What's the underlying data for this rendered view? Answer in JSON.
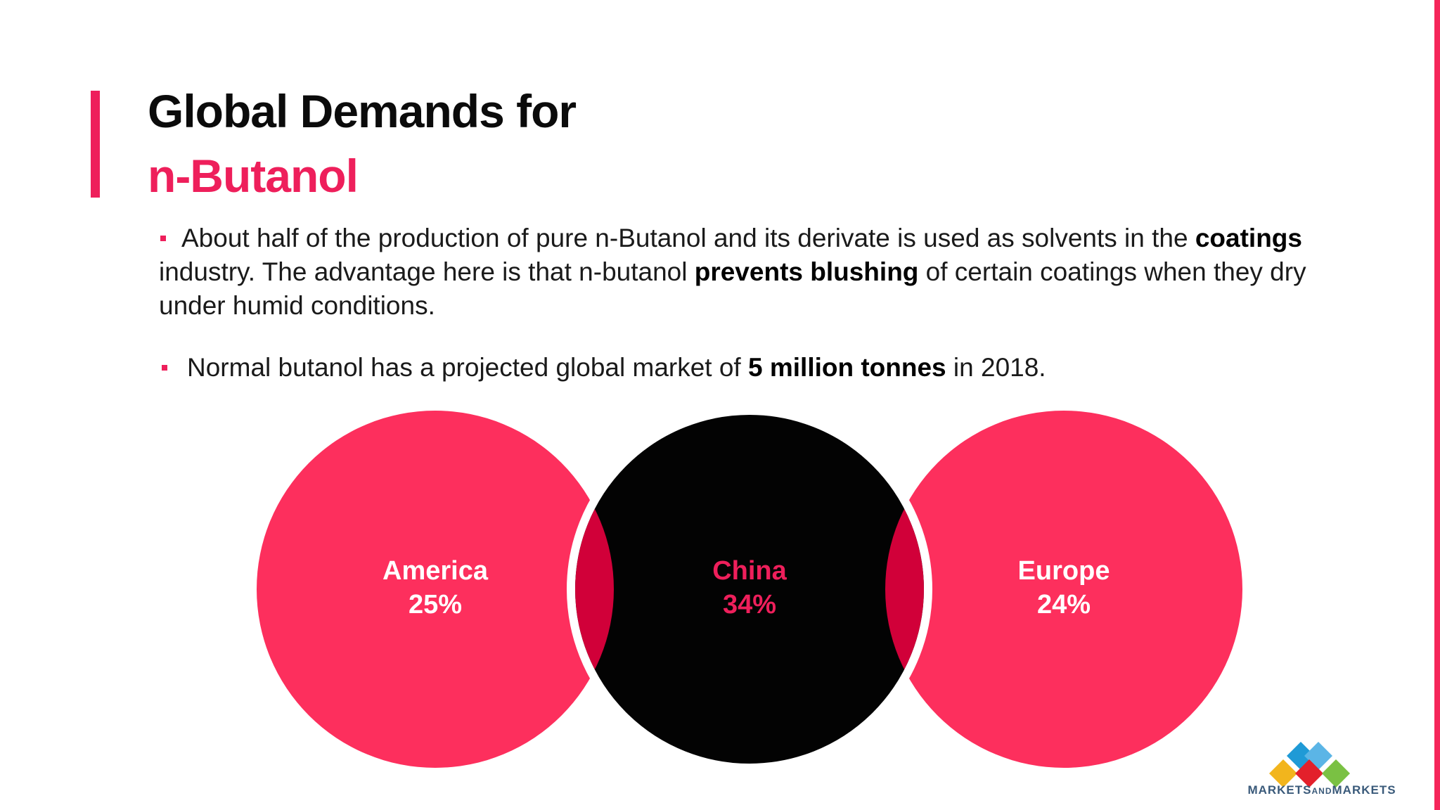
{
  "title": {
    "line1": "Global Demands for",
    "line2": "n-Butanol"
  },
  "bullets": {
    "b1": {
      "t1": "About half of the production of pure n-Butanol and its derivate is used as solvents in the ",
      "bold1": "coatings",
      "t2": " industry. The advantage here is that n-butanol ",
      "bold2": "prevents blushing",
      "t3": " of certain coatings when they dry under humid conditions."
    },
    "b2": {
      "t1": "Normal butanol has a projected global market of ",
      "bold1": "5 million tonnes",
      "t2": " in 2018."
    }
  },
  "regions": [
    {
      "name": "America",
      "value": "25%",
      "fill": "#fd2f5d",
      "text_color": "#ffffff"
    },
    {
      "name": "China",
      "value": "34%",
      "fill": "#030303",
      "text_color": "#ee1f5b"
    },
    {
      "name": "Europe",
      "value": "24%",
      "fill": "#fd2f5d",
      "text_color": "#ffffff"
    }
  ],
  "colors": {
    "accent": "#ee1f5b",
    "overlap": "#d10039"
  },
  "logo": {
    "icon": "diamond-cluster-logo",
    "text_main": "MARKETS",
    "text_small": "AND",
    "text_end": "MARKETS"
  }
}
